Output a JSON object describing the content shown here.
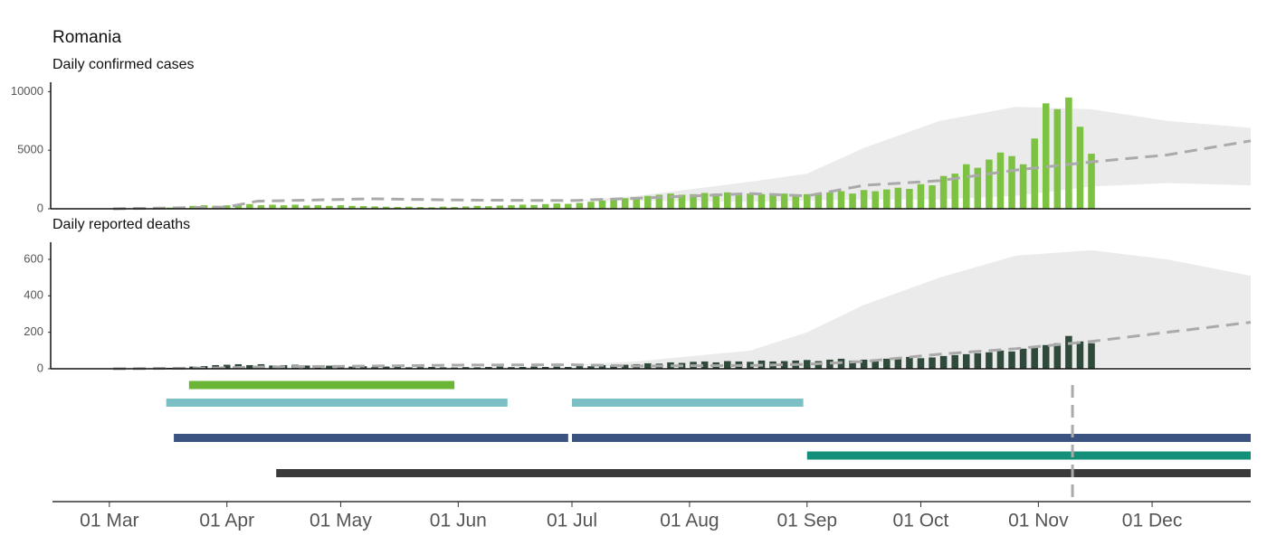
{
  "title": "Romania",
  "chart_data": [
    {
      "type": "bar",
      "subtitle": "Daily confirmed cases",
      "color": "#7dc242",
      "xlim": [
        46,
        362
      ],
      "ylim": [
        0,
        10800
      ],
      "yticks": [
        0,
        5000,
        10000
      ],
      "x": [
        62,
        65,
        68,
        71,
        74,
        77,
        80,
        83,
        86,
        89,
        92,
        95,
        98,
        101,
        104,
        107,
        110,
        113,
        116,
        119,
        122,
        125,
        128,
        131,
        134,
        137,
        140,
        143,
        146,
        149,
        152,
        155,
        158,
        161,
        164,
        167,
        170,
        173,
        176,
        179,
        182,
        185,
        188,
        191,
        194,
        197,
        200,
        203,
        206,
        209,
        212,
        215,
        218,
        221,
        224,
        227,
        230,
        233,
        236,
        239,
        242,
        245,
        248,
        251,
        254,
        257,
        260,
        263,
        266,
        269,
        272,
        275,
        278,
        281,
        284,
        287,
        290,
        293,
        296,
        299,
        302,
        305,
        308,
        311,
        314,
        317,
        320
      ],
      "values": [
        3,
        5,
        20,
        40,
        60,
        100,
        150,
        250,
        300,
        250,
        300,
        350,
        400,
        300,
        350,
        300,
        350,
        280,
        300,
        250,
        300,
        250,
        230,
        200,
        180,
        150,
        180,
        150,
        130,
        180,
        150,
        200,
        250,
        220,
        280,
        300,
        350,
        320,
        400,
        450,
        420,
        500,
        600,
        700,
        800,
        900,
        1000,
        1100,
        1200,
        1300,
        1200,
        1250,
        1350,
        1300,
        1400,
        1150,
        1300,
        1250,
        1200,
        1300,
        1200,
        1250,
        1300,
        1400,
        1500,
        1300,
        1600,
        1500,
        1650,
        1800,
        1700,
        2100,
        2000,
        2800,
        3000,
        3800,
        3500,
        4200,
        4800,
        4500,
        3800,
        6000,
        9000,
        8500,
        9500,
        7000,
        4700
      ],
      "projection": {
        "color": "#aaaaaa",
        "band_color": "#ebebeb",
        "x": [
          62,
          92,
          100,
          130,
          152,
          183,
          200,
          230,
          245,
          260,
          280,
          300,
          320,
          340,
          362
        ],
        "values": [
          0,
          150,
          650,
          850,
          750,
          700,
          900,
          1300,
          1100,
          2000,
          2400,
          3300,
          4000,
          4600,
          5800
        ],
        "upper": [
          0,
          150,
          650,
          850,
          750,
          700,
          1100,
          2300,
          3000,
          5200,
          7500,
          8700,
          8500,
          7500,
          6900
        ],
        "lower": [
          0,
          150,
          650,
          850,
          750,
          700,
          700,
          600,
          700,
          800,
          800,
          1100,
          1900,
          2200,
          2000
        ]
      }
    },
    {
      "type": "bar",
      "subtitle": "Daily reported deaths",
      "color": "#2f4a3a",
      "xlim": [
        46,
        362
      ],
      "ylim": [
        0,
        694
      ],
      "yticks": [
        0,
        200,
        400,
        600
      ],
      "x": [
        62,
        65,
        68,
        71,
        74,
        77,
        80,
        83,
        86,
        89,
        92,
        95,
        98,
        101,
        104,
        107,
        110,
        113,
        116,
        119,
        122,
        125,
        128,
        131,
        134,
        137,
        140,
        143,
        146,
        149,
        152,
        155,
        158,
        161,
        164,
        167,
        170,
        173,
        176,
        179,
        182,
        185,
        188,
        191,
        194,
        197,
        200,
        203,
        206,
        209,
        212,
        215,
        218,
        221,
        224,
        227,
        230,
        233,
        236,
        239,
        242,
        245,
        248,
        251,
        254,
        257,
        260,
        263,
        266,
        269,
        272,
        275,
        278,
        281,
        284,
        287,
        290,
        293,
        296,
        299,
        302,
        305,
        308,
        311,
        314,
        317,
        320
      ],
      "values": [
        0,
        0,
        1,
        2,
        3,
        5,
        8,
        12,
        15,
        20,
        22,
        25,
        20,
        25,
        18,
        20,
        22,
        18,
        15,
        17,
        15,
        12,
        14,
        10,
        12,
        10,
        8,
        9,
        10,
        8,
        7,
        9,
        8,
        10,
        12,
        9,
        10,
        12,
        10,
        12,
        10,
        15,
        14,
        20,
        18,
        22,
        25,
        30,
        28,
        35,
        32,
        38,
        40,
        35,
        42,
        40,
        38,
        45,
        40,
        42,
        45,
        48,
        42,
        50,
        55,
        45,
        50,
        52,
        55,
        60,
        65,
        58,
        62,
        70,
        75,
        80,
        85,
        90,
        100,
        95,
        110,
        120,
        130,
        140,
        180,
        150,
        140
      ],
      "projection": {
        "color": "#aaaaaa",
        "band_color": "#ebebeb",
        "x": [
          62,
          92,
          100,
          130,
          152,
          183,
          200,
          230,
          245,
          260,
          280,
          300,
          320,
          340,
          362
        ],
        "values": [
          0,
          5,
          10,
          15,
          20,
          22,
          15,
          18,
          25,
          40,
          80,
          110,
          150,
          200,
          255
        ],
        "upper": [
          0,
          5,
          10,
          15,
          20,
          22,
          40,
          100,
          200,
          350,
          500,
          620,
          650,
          600,
          510
        ],
        "lower": [
          0,
          5,
          10,
          15,
          20,
          22,
          10,
          10,
          10,
          10,
          10,
          10,
          10,
          10,
          10
        ]
      }
    },
    {
      "type": "timeline",
      "xlim": [
        46,
        362
      ],
      "marker_x": 315,
      "marker_color": "#aaaaaa",
      "xticks": [
        {
          "value": 61,
          "label": "01 Mar"
        },
        {
          "value": 92,
          "label": "01 Apr"
        },
        {
          "value": 122,
          "label": "01 May"
        },
        {
          "value": 153,
          "label": "01 Jun"
        },
        {
          "value": 183,
          "label": "01 Jul"
        },
        {
          "value": 214,
          "label": "01 Aug"
        },
        {
          "value": 245,
          "label": "01 Sep"
        },
        {
          "value": 275,
          "label": "01 Oct"
        },
        {
          "value": 306,
          "label": "01 Nov"
        },
        {
          "value": 336,
          "label": "01 Dec"
        }
      ],
      "rows": [
        [
          {
            "start": 82,
            "end": 152,
            "color": "#6ab536"
          }
        ],
        [
          {
            "start": 76,
            "end": 166,
            "color": "#7cbfc4"
          },
          {
            "start": 183,
            "end": 244,
            "color": "#7cbfc4"
          }
        ],
        [],
        [
          {
            "start": 78,
            "end": 182,
            "color": "#3a5380"
          },
          {
            "start": 183,
            "end": 362,
            "color": "#3a5380"
          }
        ],
        [
          {
            "start": 245,
            "end": 362,
            "color": "#14907a"
          }
        ],
        [
          {
            "start": 105,
            "end": 362,
            "color": "#3a3a3a"
          }
        ]
      ]
    }
  ]
}
